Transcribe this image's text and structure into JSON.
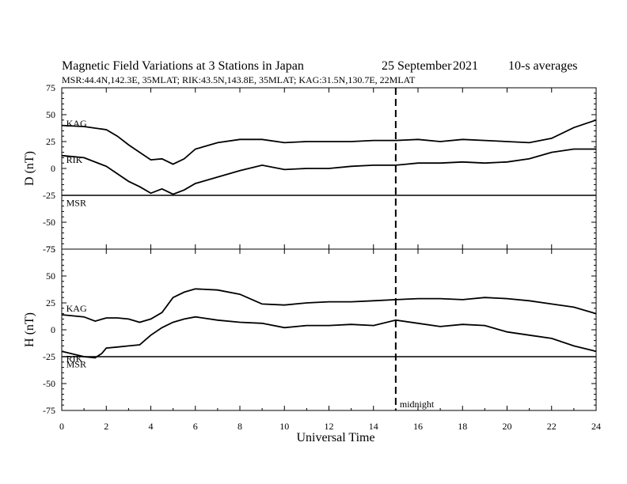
{
  "header": {
    "title": "Magnetic Field Variations at 3 Stations in Japan",
    "date": "25 September",
    "year": "2021",
    "averaging": "10-s averages",
    "stations": "MSR:44.4N,142.3E, 35MLAT;  RIK:43.5N,143.8E, 35MLAT;  KAG:31.5N,130.7E, 22MLAT"
  },
  "chart_data": {
    "type": "line",
    "xlabel": "Universal Time",
    "xlim": [
      0,
      24
    ],
    "xticks": [
      0,
      2,
      4,
      6,
      8,
      10,
      12,
      14,
      16,
      18,
      20,
      22,
      24
    ],
    "yticks": [
      -75,
      -50,
      -25,
      0,
      25,
      50,
      75
    ],
    "marker": {
      "x": 15,
      "label": "midnight",
      "style": "dashed"
    },
    "panels": [
      {
        "ylabel": "D (nT)",
        "ylim": [
          -75,
          75
        ],
        "series": [
          {
            "name": "KAG",
            "x": [
              0,
              1,
              2,
              2.5,
              3,
              3.5,
              4,
              4.5,
              5,
              5.5,
              6,
              7,
              8,
              9,
              10,
              11,
              12,
              13,
              14,
              15,
              16,
              17,
              18,
              19,
              20,
              21,
              22,
              23,
              24
            ],
            "values": [
              40,
              39,
              36,
              30,
              22,
              15,
              8,
              9,
              4,
              9,
              18,
              24,
              27,
              27,
              24,
              25,
              25,
              25,
              26,
              26,
              27,
              25,
              27,
              26,
              25,
              24,
              28,
              38,
              45
            ]
          },
          {
            "name": "RIK",
            "x": [
              0,
              1,
              2,
              2.5,
              3,
              3.5,
              4,
              4.5,
              5,
              5.5,
              6,
              7,
              8,
              9,
              10,
              11,
              12,
              13,
              14,
              15,
              16,
              17,
              18,
              19,
              20,
              21,
              22,
              23,
              24
            ],
            "values": [
              12,
              10,
              2,
              -5,
              -12,
              -17,
              -23,
              -19,
              -24,
              -20,
              -14,
              -8,
              -2,
              3,
              -1,
              0,
              0,
              2,
              3,
              3,
              5,
              5,
              6,
              5,
              6,
              9,
              15,
              18,
              18
            ]
          },
          {
            "name": "MSR",
            "x": [
              0,
              24
            ],
            "values": [
              -25,
              -25
            ]
          }
        ],
        "series_labels": [
          {
            "name": "KAG",
            "x": 0.2,
            "y": 42
          },
          {
            "name": "RIK",
            "x": 0.2,
            "y": 8
          },
          {
            "name": "MSR",
            "x": 0.2,
            "y": -32
          }
        ]
      },
      {
        "ylabel": "H (nT)",
        "ylim": [
          -75,
          75
        ],
        "series": [
          {
            "name": "KAG",
            "x": [
              0,
              1,
              1.5,
              2,
              2.5,
              3,
              3.5,
              4,
              4.5,
              5,
              5.5,
              6,
              7,
              8,
              9,
              10,
              11,
              12,
              13,
              14,
              15,
              16,
              17,
              18,
              19,
              20,
              21,
              22,
              23,
              24
            ],
            "values": [
              14,
              12,
              8,
              11,
              11,
              10,
              7,
              10,
              16,
              30,
              35,
              38,
              37,
              33,
              24,
              23,
              25,
              26,
              26,
              27,
              28,
              29,
              29,
              28,
              30,
              29,
              27,
              24,
              21,
              15
            ]
          },
          {
            "name": "RIK",
            "x": [
              0,
              1,
              1.5,
              1.8,
              2,
              2.5,
              3,
              3.5,
              4,
              4.5,
              5,
              5.5,
              6,
              7,
              8,
              9,
              10,
              11,
              12,
              13,
              14,
              15,
              16,
              17,
              18,
              19,
              20,
              21,
              22,
              23,
              24
            ],
            "values": [
              -20,
              -25,
              -26,
              -22,
              -17,
              -16,
              -15,
              -14,
              -5,
              2,
              7,
              10,
              12,
              9,
              7,
              6,
              2,
              4,
              4,
              5,
              4,
              9,
              6,
              3,
              5,
              4,
              -2,
              -5,
              -8,
              -15,
              -20
            ]
          },
          {
            "name": "MSR",
            "x": [
              0,
              24
            ],
            "values": [
              -25,
              -25
            ]
          }
        ],
        "series_labels": [
          {
            "name": "KAG",
            "x": 0.2,
            "y": 20
          },
          {
            "name": "RIK",
            "x": 0.2,
            "y": -27
          },
          {
            "name": "MSR",
            "x": 0.2,
            "y": -32
          }
        ]
      }
    ]
  }
}
